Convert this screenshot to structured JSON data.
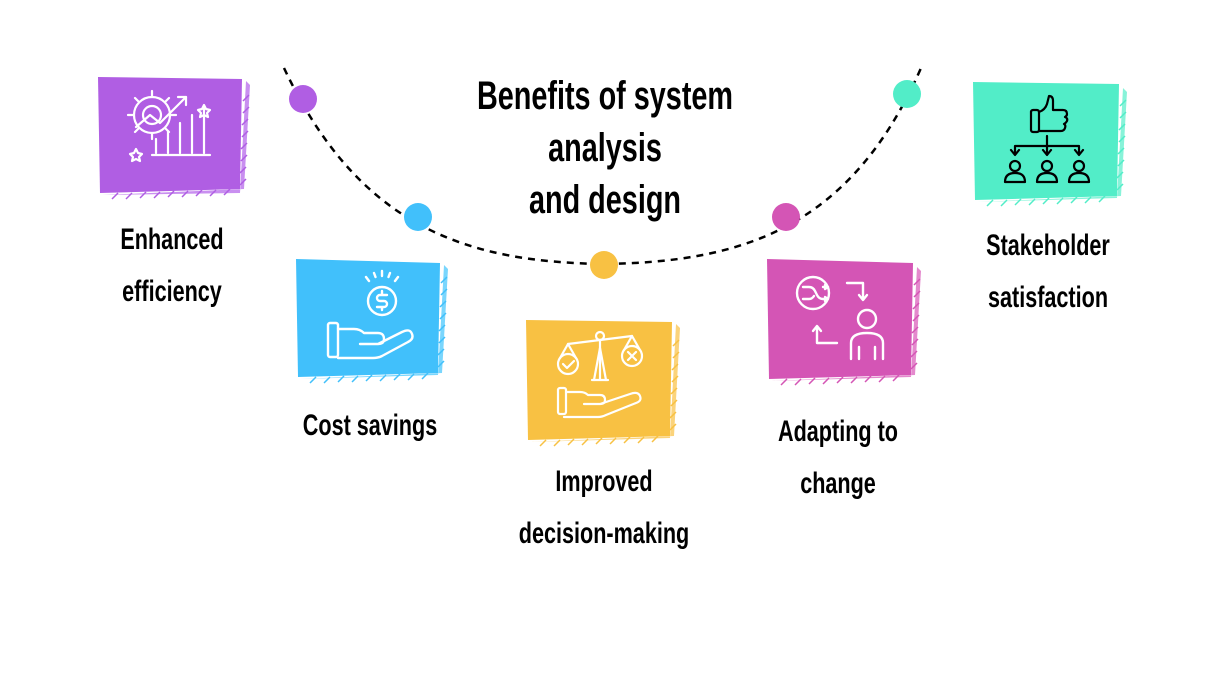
{
  "title_line1": "Benefits of system analysis",
  "title_line2": "and design",
  "items": [
    {
      "line1": "Enhanced",
      "line2": "efficiency",
      "color": "#b05ee3",
      "edge": "#c98ff0",
      "dot": "#b05ee3",
      "icon": "gear-growth-icon"
    },
    {
      "line1": "Cost savings",
      "line2": "",
      "color": "#41c0fb",
      "edge": "#7ad6fd",
      "dot": "#41c0fb",
      "icon": "hand-coin-icon"
    },
    {
      "line1": "Improved",
      "line2": "decision-making",
      "color": "#f8c143",
      "edge": "#fbd37b",
      "dot": "#f8c143",
      "icon": "scale-hand-icon"
    },
    {
      "line1": "Adapting to",
      "line2": "change",
      "color": "#d455b5",
      "edge": "#e489cd",
      "dot": "#d455b5",
      "icon": "shuffle-person-icon"
    },
    {
      "line1": "Stakeholder",
      "line2": "satisfaction",
      "color": "#52edc8",
      "edge": "#88f3d9",
      "dot": "#52edc8",
      "icon": "thumbs-up-people-icon"
    }
  ]
}
